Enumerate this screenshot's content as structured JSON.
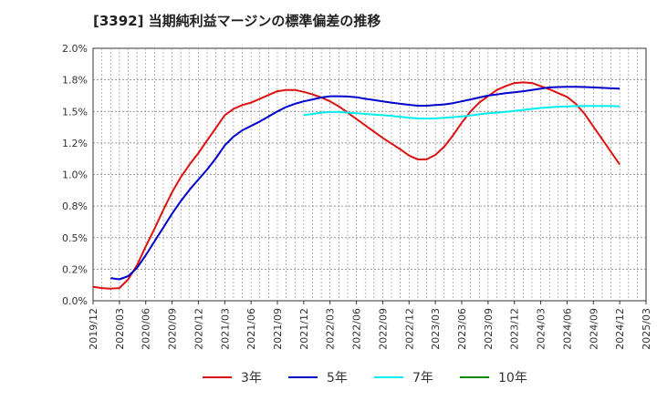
{
  "chart_data": {
    "type": "line",
    "title": "[3392]  当期純利益マージンの標準偏差の推移",
    "xlabel": "",
    "ylabel": "",
    "ylim": [
      0,
      2.0
    ],
    "y_ticks": [
      "0.0%",
      "0.2%",
      "0.5%",
      "0.8%",
      "1.0%",
      "1.2%",
      "1.5%",
      "1.8%",
      "2.0%"
    ],
    "y_tick_values": [
      0,
      0.25,
      0.5,
      0.75,
      1.0,
      1.25,
      1.5,
      1.75,
      2.0
    ],
    "x_ticks": [
      "2019/12",
      "2020/03",
      "2020/06",
      "2020/09",
      "2020/12",
      "2021/03",
      "2021/06",
      "2021/09",
      "2021/12",
      "2022/03",
      "2022/06",
      "2022/09",
      "2022/12",
      "2023/03",
      "2023/06",
      "2023/09",
      "2023/12",
      "2024/03",
      "2024/06",
      "2024/09",
      "2024/12",
      "2025/03"
    ],
    "grid": true,
    "legend_position": "bottom",
    "series": [
      {
        "name": "3年",
        "color": "#dd1111",
        "points": [
          [
            "2019/12",
            0.11
          ],
          [
            "2020/01",
            0.1
          ],
          [
            "2020/02",
            0.095
          ],
          [
            "2020/03",
            0.1
          ],
          [
            "2020/04",
            0.17
          ],
          [
            "2020/05",
            0.28
          ],
          [
            "2020/06",
            0.43
          ],
          [
            "2020/07",
            0.57
          ],
          [
            "2020/08",
            0.72
          ],
          [
            "2020/09",
            0.86
          ],
          [
            "2020/10",
            0.98
          ],
          [
            "2020/11",
            1.08
          ],
          [
            "2020/12",
            1.17
          ],
          [
            "2021/01",
            1.27
          ],
          [
            "2021/02",
            1.37
          ],
          [
            "2021/03",
            1.47
          ],
          [
            "2021/04",
            1.52
          ],
          [
            "2021/05",
            1.55
          ],
          [
            "2021/06",
            1.57
          ],
          [
            "2021/07",
            1.6
          ],
          [
            "2021/08",
            1.63
          ],
          [
            "2021/09",
            1.66
          ],
          [
            "2021/10",
            1.67
          ],
          [
            "2021/11",
            1.67
          ],
          [
            "2021/12",
            1.655
          ],
          [
            "2022/01",
            1.635
          ],
          [
            "2022/02",
            1.61
          ],
          [
            "2022/03",
            1.58
          ],
          [
            "2022/04",
            1.54
          ],
          [
            "2022/05",
            1.49
          ],
          [
            "2022/06",
            1.44
          ],
          [
            "2022/07",
            1.39
          ],
          [
            "2022/08",
            1.34
          ],
          [
            "2022/09",
            1.29
          ],
          [
            "2022/10",
            1.245
          ],
          [
            "2022/11",
            1.2
          ],
          [
            "2022/12",
            1.15
          ],
          [
            "2023/01",
            1.12
          ],
          [
            "2023/02",
            1.12
          ],
          [
            "2023/03",
            1.155
          ],
          [
            "2023/04",
            1.22
          ],
          [
            "2023/05",
            1.31
          ],
          [
            "2023/06",
            1.41
          ],
          [
            "2023/07",
            1.5
          ],
          [
            "2023/08",
            1.57
          ],
          [
            "2023/09",
            1.62
          ],
          [
            "2023/10",
            1.67
          ],
          [
            "2023/11",
            1.7
          ],
          [
            "2023/12",
            1.725
          ],
          [
            "2024/01",
            1.73
          ],
          [
            "2024/02",
            1.725
          ],
          [
            "2024/03",
            1.7
          ],
          [
            "2024/04",
            1.675
          ],
          [
            "2024/05",
            1.645
          ],
          [
            "2024/06",
            1.615
          ],
          [
            "2024/07",
            1.56
          ],
          [
            "2024/08",
            1.48
          ],
          [
            "2024/09",
            1.38
          ],
          [
            "2024/10",
            1.28
          ],
          [
            "2024/11",
            1.18
          ],
          [
            "2024/12",
            1.08
          ]
        ]
      },
      {
        "name": "5年",
        "color": "#0000cc",
        "points": [
          [
            "2020/02",
            0.18
          ],
          [
            "2020/03",
            0.17
          ],
          [
            "2020/04",
            0.195
          ],
          [
            "2020/05",
            0.26
          ],
          [
            "2020/06",
            0.36
          ],
          [
            "2020/07",
            0.47
          ],
          [
            "2020/08",
            0.58
          ],
          [
            "2020/09",
            0.69
          ],
          [
            "2020/10",
            0.79
          ],
          [
            "2020/11",
            0.88
          ],
          [
            "2020/12",
            0.96
          ],
          [
            "2021/01",
            1.04
          ],
          [
            "2021/02",
            1.13
          ],
          [
            "2021/03",
            1.23
          ],
          [
            "2021/04",
            1.3
          ],
          [
            "2021/05",
            1.35
          ],
          [
            "2021/06",
            1.385
          ],
          [
            "2021/07",
            1.42
          ],
          [
            "2021/08",
            1.46
          ],
          [
            "2021/09",
            1.5
          ],
          [
            "2021/10",
            1.535
          ],
          [
            "2021/11",
            1.56
          ],
          [
            "2021/12",
            1.58
          ],
          [
            "2022/01",
            1.595
          ],
          [
            "2022/02",
            1.61
          ],
          [
            "2022/03",
            1.62
          ],
          [
            "2022/04",
            1.62
          ],
          [
            "2022/05",
            1.618
          ],
          [
            "2022/06",
            1.612
          ],
          [
            "2022/07",
            1.6
          ],
          [
            "2022/08",
            1.59
          ],
          [
            "2022/09",
            1.58
          ],
          [
            "2022/10",
            1.57
          ],
          [
            "2022/11",
            1.56
          ],
          [
            "2022/12",
            1.552
          ],
          [
            "2023/01",
            1.545
          ],
          [
            "2023/02",
            1.545
          ],
          [
            "2023/03",
            1.55
          ],
          [
            "2023/04",
            1.555
          ],
          [
            "2023/05",
            1.565
          ],
          [
            "2023/06",
            1.58
          ],
          [
            "2023/07",
            1.595
          ],
          [
            "2023/08",
            1.61
          ],
          [
            "2023/09",
            1.625
          ],
          [
            "2023/10",
            1.635
          ],
          [
            "2023/11",
            1.645
          ],
          [
            "2023/12",
            1.652
          ],
          [
            "2024/01",
            1.66
          ],
          [
            "2024/02",
            1.67
          ],
          [
            "2024/03",
            1.68
          ],
          [
            "2024/04",
            1.69
          ],
          [
            "2024/05",
            1.693
          ],
          [
            "2024/06",
            1.695
          ],
          [
            "2024/07",
            1.695
          ],
          [
            "2024/08",
            1.693
          ],
          [
            "2024/09",
            1.69
          ],
          [
            "2024/10",
            1.687
          ],
          [
            "2024/11",
            1.683
          ],
          [
            "2024/12",
            1.68
          ]
        ]
      },
      {
        "name": "7年",
        "color": "#00eeee",
        "points": [
          [
            "2021/12",
            1.47
          ],
          [
            "2022/01",
            1.48
          ],
          [
            "2022/02",
            1.49
          ],
          [
            "2022/03",
            1.495
          ],
          [
            "2022/04",
            1.495
          ],
          [
            "2022/05",
            1.49
          ],
          [
            "2022/06",
            1.485
          ],
          [
            "2022/07",
            1.48
          ],
          [
            "2022/08",
            1.475
          ],
          [
            "2022/09",
            1.47
          ],
          [
            "2022/10",
            1.465
          ],
          [
            "2022/11",
            1.458
          ],
          [
            "2022/12",
            1.45
          ],
          [
            "2023/01",
            1.445
          ],
          [
            "2023/02",
            1.443
          ],
          [
            "2023/03",
            1.445
          ],
          [
            "2023/04",
            1.45
          ],
          [
            "2023/05",
            1.455
          ],
          [
            "2023/06",
            1.46
          ],
          [
            "2023/07",
            1.468
          ],
          [
            "2023/08",
            1.477
          ],
          [
            "2023/09",
            1.485
          ],
          [
            "2023/10",
            1.49
          ],
          [
            "2023/11",
            1.497
          ],
          [
            "2023/12",
            1.505
          ],
          [
            "2024/01",
            1.512
          ],
          [
            "2024/02",
            1.52
          ],
          [
            "2024/03",
            1.527
          ],
          [
            "2024/04",
            1.533
          ],
          [
            "2024/05",
            1.537
          ],
          [
            "2024/06",
            1.54
          ],
          [
            "2024/07",
            1.542
          ],
          [
            "2024/08",
            1.543
          ],
          [
            "2024/09",
            1.543
          ],
          [
            "2024/10",
            1.543
          ],
          [
            "2024/11",
            1.542
          ],
          [
            "2024/12",
            1.54
          ]
        ]
      },
      {
        "name": "10年",
        "color": "#008800",
        "points": []
      }
    ]
  }
}
